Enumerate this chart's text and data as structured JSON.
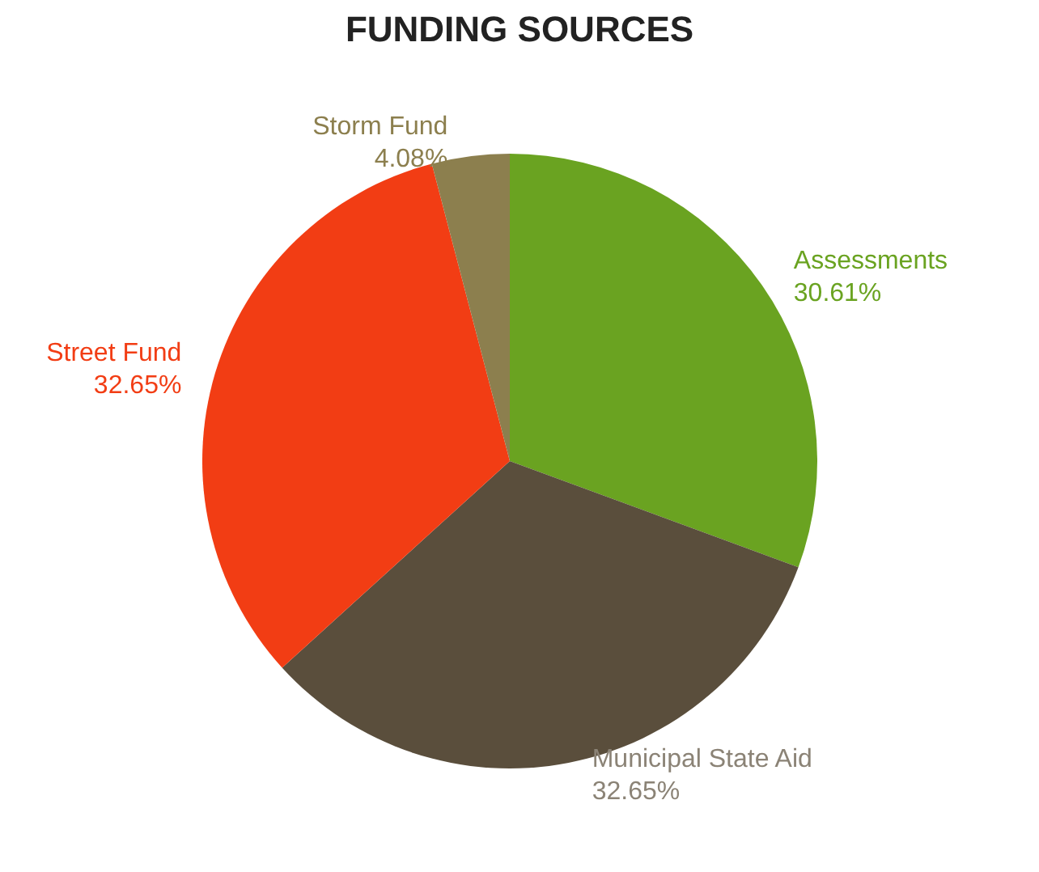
{
  "chart_data": {
    "type": "pie",
    "title": "FUNDING SOURCES",
    "categories": [
      "Assessments",
      "Municipal State Aid",
      "Street Fund",
      "Storm Fund"
    ],
    "values": [
      30.61,
      32.65,
      32.65,
      4.08
    ],
    "value_labels": [
      "30.61%",
      "32.65%",
      "32.65%",
      "4.08%"
    ],
    "colors": [
      "#6aa321",
      "#5a4e3c",
      "#f23d14",
      "#8c7f4e"
    ]
  }
}
